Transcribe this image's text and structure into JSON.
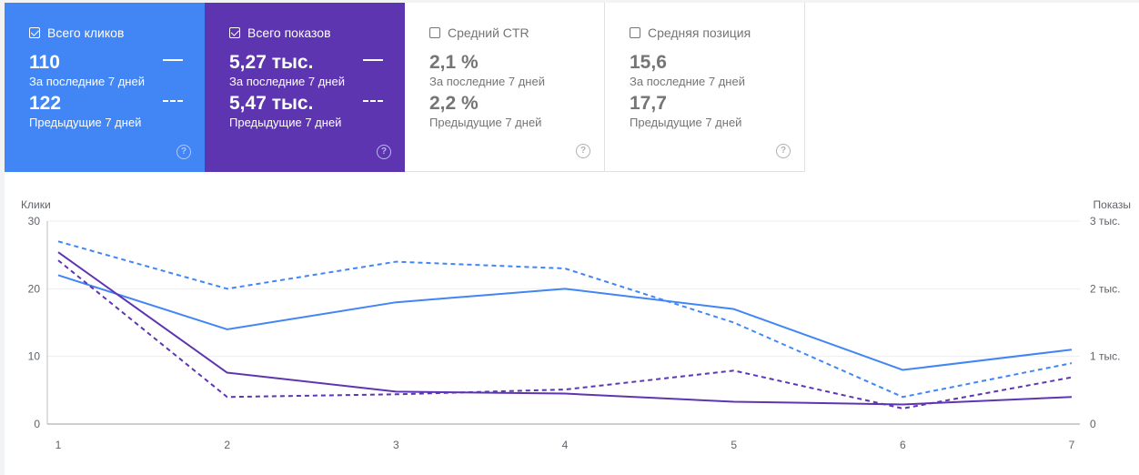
{
  "cards": [
    {
      "id": "clicks",
      "title": "Всего кликов",
      "checked": true,
      "current_value": "110",
      "current_label": "За последние 7 дней",
      "previous_value": "122",
      "previous_label": "Предыдущие 7 дней",
      "color": "#4285f4"
    },
    {
      "id": "impr",
      "title": "Всего показов",
      "checked": true,
      "current_value": "5,27 тыс.",
      "current_label": "За последние 7 дней",
      "previous_value": "5,47 тыс.",
      "previous_label": "Предыдущие 7 дней",
      "color": "#5e35b1"
    },
    {
      "id": "ctr",
      "title": "Средний CTR",
      "checked": false,
      "current_value": "2,1 %",
      "current_label": "За последние 7 дней",
      "previous_value": "2,2 %",
      "previous_label": "Предыдущие 7 дней"
    },
    {
      "id": "pos",
      "title": "Средняя позиция",
      "checked": false,
      "current_value": "15,6",
      "current_label": "За последние 7 дней",
      "previous_value": "17,7",
      "previous_label": "Предыдущие 7 дней"
    }
  ],
  "icons": {
    "help": "help-circle-icon",
    "check": "checkbox-icon"
  },
  "chart_data": {
    "type": "line",
    "x": [
      1,
      2,
      3,
      4,
      5,
      6,
      7
    ],
    "ylabel_left": "Клики",
    "ylabel_right": "Показы",
    "ylim_left": [
      0,
      30
    ],
    "ylim_right": [
      0,
      3000
    ],
    "left_ticks": [
      "0",
      "10",
      "20",
      "30"
    ],
    "right_ticks": [
      "0",
      "1 тыс.",
      "2 тыс.",
      "3 тыс."
    ],
    "grid": true,
    "series": [
      {
        "name": "Всего кликов",
        "axis": "left",
        "style": "solid",
        "color": "#4285f4",
        "values": [
          22,
          14,
          18,
          20,
          17,
          8,
          11
        ]
      },
      {
        "name": "Всего кликов",
        "axis": "left",
        "style": "dashed",
        "color": "#4285f4",
        "values": [
          27,
          20,
          24,
          23,
          15,
          4,
          9
        ]
      },
      {
        "name": "Всего показов",
        "axis": "right",
        "style": "solid",
        "color": "#5e35b1",
        "values": [
          2540,
          760,
          480,
          450,
          330,
          290,
          400
        ]
      },
      {
        "name": "Всего показов",
        "axis": "right",
        "style": "dashed",
        "color": "#5e35b1",
        "values": [
          2420,
          400,
          440,
          510,
          790,
          230,
          690
        ]
      }
    ]
  }
}
